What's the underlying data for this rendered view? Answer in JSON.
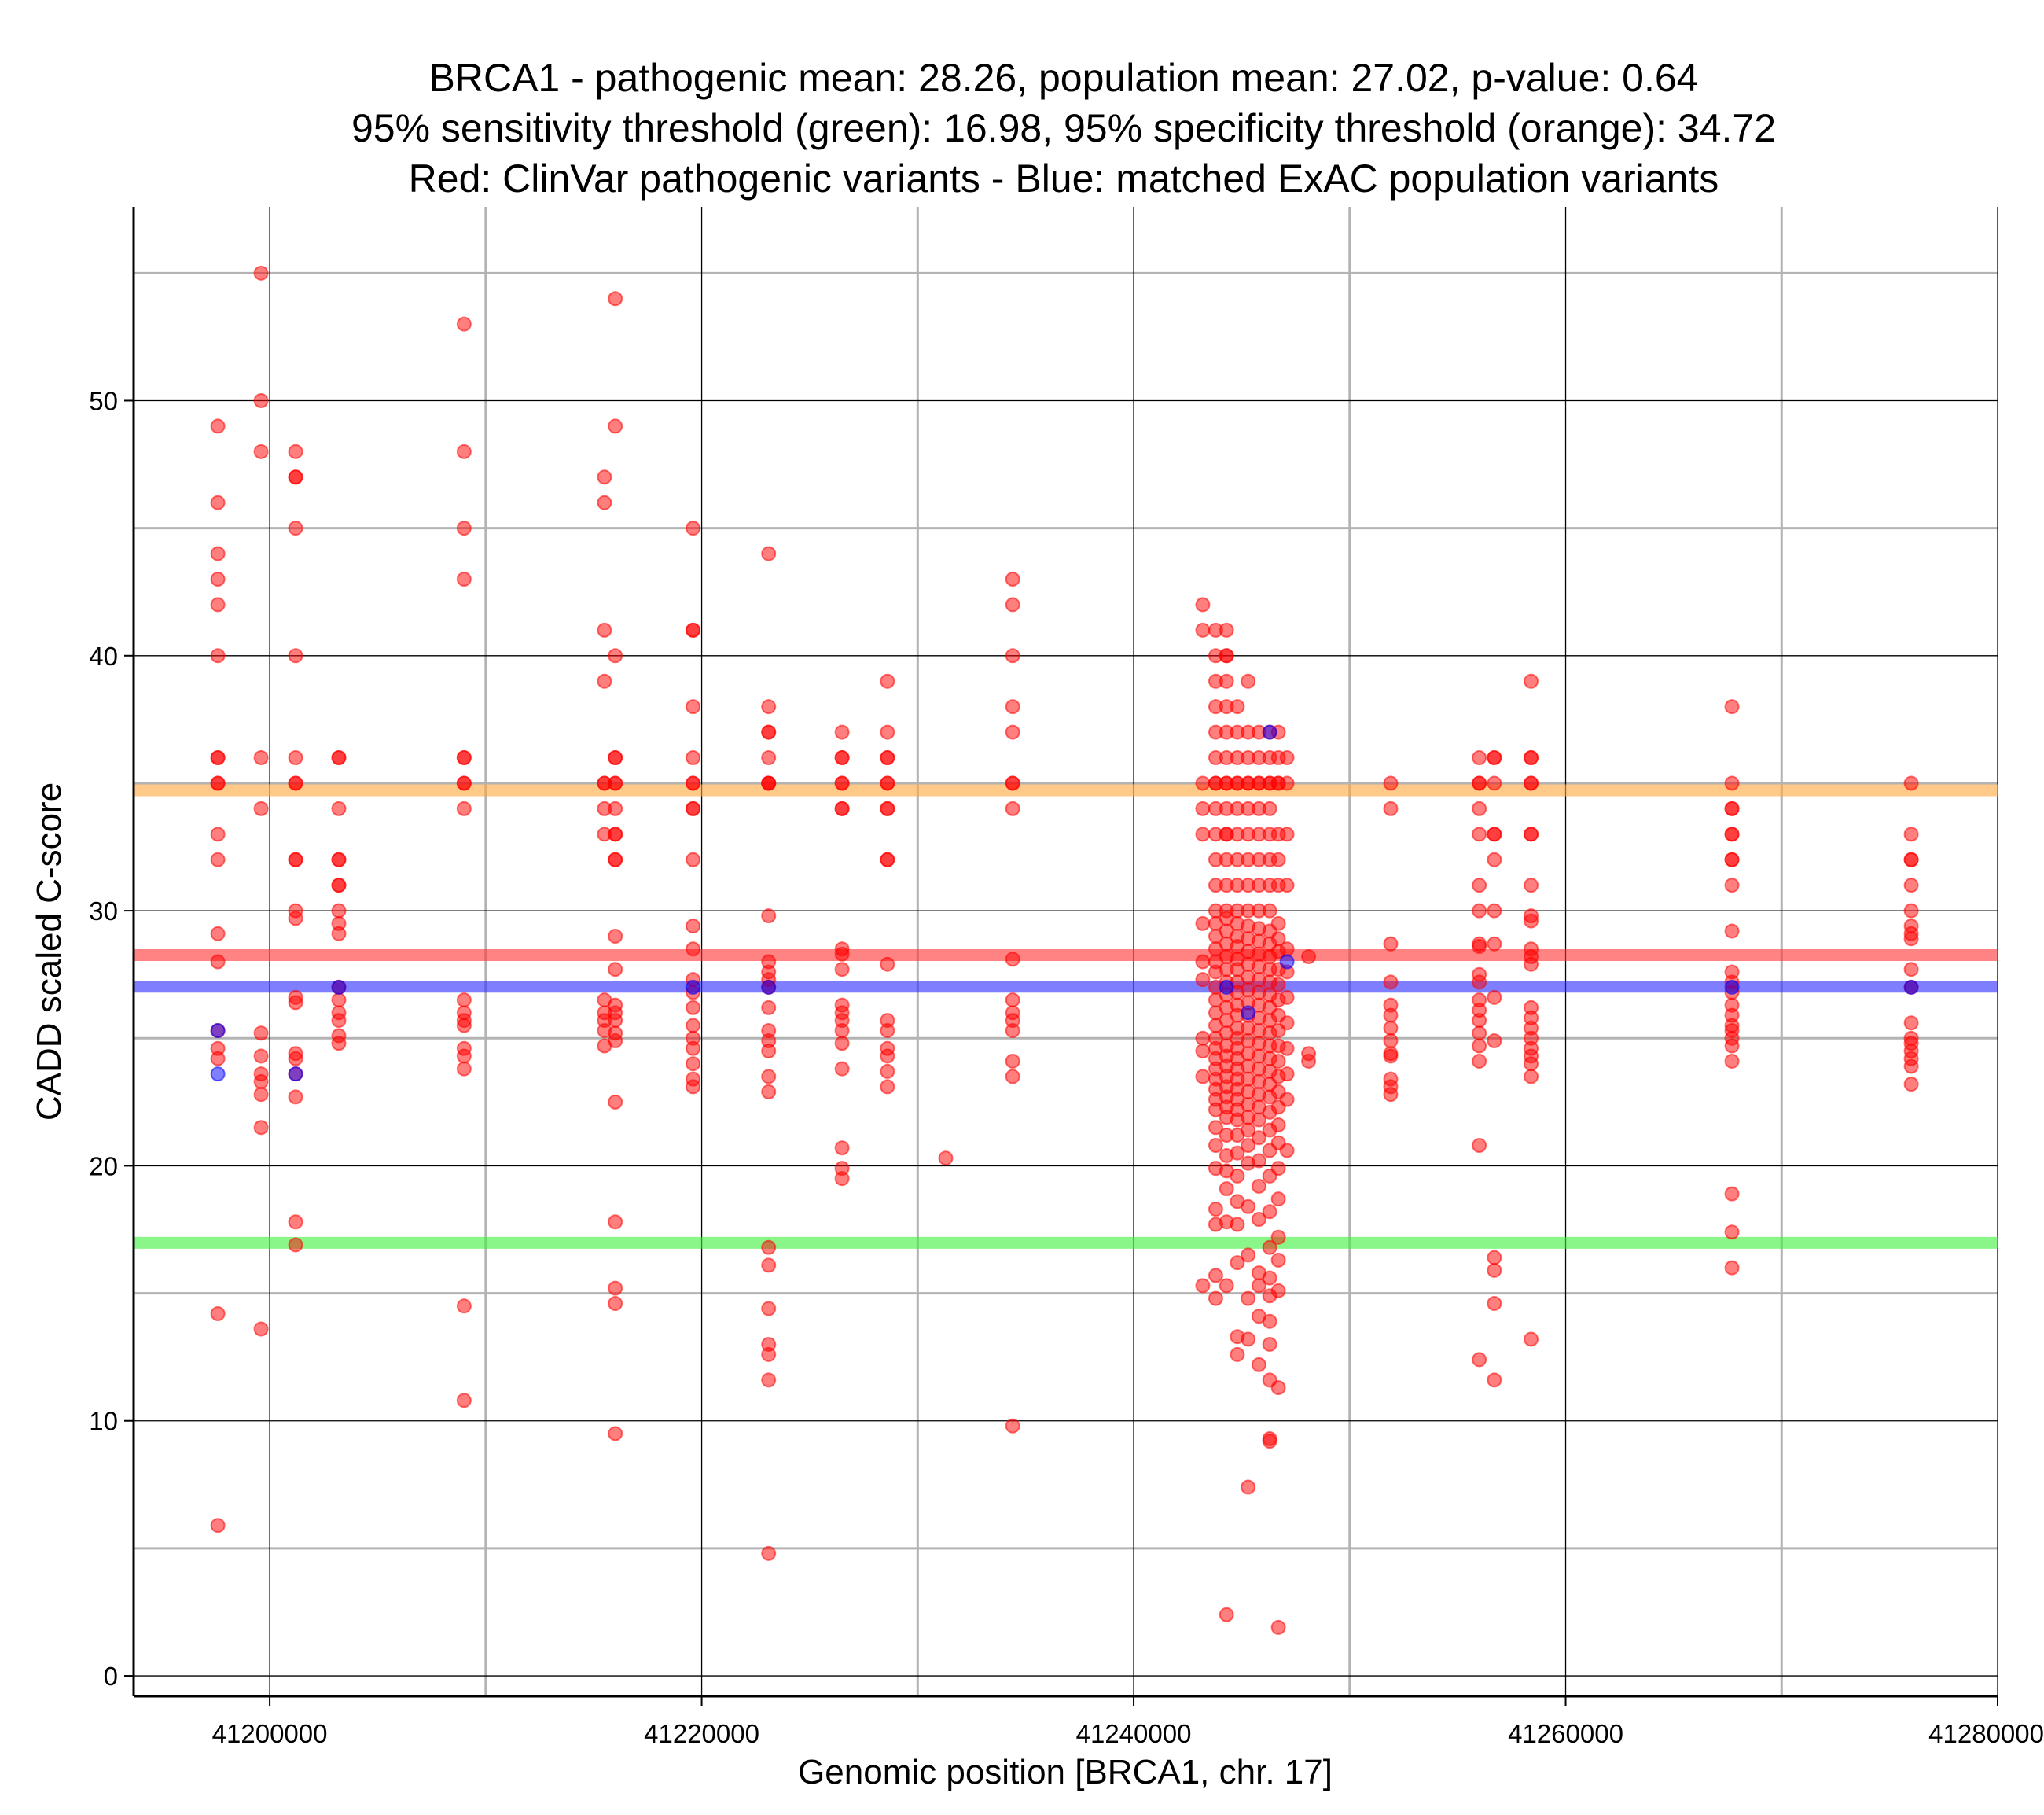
{
  "chart_data": {
    "type": "scatter",
    "title_lines": [
      "BRCA1 - pathogenic mean: 28.26, population mean: 27.02, p-value: 0.64",
      "95% sensitivity threshold (green): 16.98, 95% specificity threshold (orange): 34.72",
      "Red: ClinVar pathogenic variants - Blue: matched ExAC population variants"
    ],
    "xlabel": "Genomic position [BRCA1, chr. 17]",
    "ylabel": "CADD scaled C-score",
    "xlim": [
      41193700,
      41280000
    ],
    "ylim": [
      -0.8,
      57.6
    ],
    "x_ticks": [
      41200000,
      41220000,
      41240000,
      41260000,
      41280000
    ],
    "x_tick_labels": [
      "41200000",
      "41220000",
      "41240000",
      "41260000",
      "41280000"
    ],
    "y_ticks": [
      0,
      10,
      20,
      30,
      40,
      50
    ],
    "y_tick_labels": [
      "0",
      "10",
      "20",
      "30",
      "40",
      "50"
    ],
    "grid": true,
    "reference_lines": [
      {
        "name": "95% specificity threshold",
        "value": 34.72,
        "color": "#ffa53a"
      },
      {
        "name": "pathogenic mean",
        "value": 28.26,
        "color": "#ff3030"
      },
      {
        "name": "population mean",
        "value": 27.02,
        "color": "#2828ff"
      },
      {
        "name": "95% sensitivity threshold",
        "value": 16.98,
        "color": "#3cf03c"
      }
    ],
    "series": [
      {
        "name": "ClinVar pathogenic variants",
        "color": "#ff0000",
        "columns": [
          {
            "x": 41197600,
            "y": [
              49,
              46,
              44,
              43,
              42,
              40,
              36,
              36,
              35,
              35,
              33,
              32,
              29.1,
              28,
              25.3,
              24.6,
              24.2,
              14.2,
              5.9
            ]
          },
          {
            "x": 41199600,
            "y": [
              55,
              50,
              48,
              36,
              34,
              25.2,
              24.3,
              23.6,
              23.3,
              22.8,
              21.5,
              13.6
            ]
          },
          {
            "x": 41201200,
            "y": [
              48,
              47,
              47,
              45,
              40,
              36,
              35,
              35,
              32,
              32,
              30,
              29.7,
              26.6,
              26.4,
              24.4,
              24.2,
              23.6,
              22.7,
              17.8,
              16.9
            ]
          },
          {
            "x": 41203200,
            "y": [
              36,
              36,
              34,
              32,
              32,
              31,
              31,
              30,
              29.5,
              29.1,
              27,
              26.5,
              26,
              25.7,
              25.1,
              24.8
            ]
          },
          {
            "x": 41209000,
            "y": [
              53,
              48,
              45,
              43,
              36,
              36,
              35,
              35,
              34,
              26.5,
              26,
              25.7,
              25.5,
              24.6,
              24.3,
              23.8,
              14.5,
              10.8
            ]
          },
          {
            "x": 41215500,
            "y": [
              47,
              46,
              41,
              39,
              35,
              35,
              34,
              33,
              26.5,
              26,
              25.7,
              25.3,
              24.7
            ]
          },
          {
            "x": 41216000,
            "y": [
              54,
              49,
              40,
              36,
              36,
              35,
              35,
              34,
              33,
              33,
              32,
              32,
              29,
              27.7,
              26.3,
              26,
              25.7,
              25.2,
              24.9,
              22.5,
              17.8,
              15.2,
              14.6,
              9.5
            ]
          },
          {
            "x": 41219600,
            "y": [
              45,
              41,
              41,
              38,
              36,
              35,
              35,
              34,
              34,
              32,
              29.4,
              28.5,
              27.3,
              26.8,
              26.2,
              25.5,
              25,
              24.6,
              24,
              23.4,
              23.1
            ]
          },
          {
            "x": 41223100,
            "y": [
              44,
              38,
              37,
              37,
              36,
              35,
              35,
              35,
              29.8,
              28,
              27.6,
              27.3,
              27,
              26.2,
              25.3,
              24.9,
              24.5,
              23.5,
              22.9,
              16.8,
              16.1,
              14.4,
              13,
              12.6,
              11.6,
              4.8
            ]
          },
          {
            "x": 41226500,
            "y": [
              37,
              36,
              36,
              35,
              35,
              34,
              34,
              28.5,
              28.3,
              27.7,
              26.3,
              26,
              25.7,
              25.3,
              24.8,
              23.8,
              20.7,
              19.9,
              19.5
            ]
          },
          {
            "x": 41228600,
            "y": [
              39,
              37,
              36,
              36,
              35,
              35,
              34,
              34,
              32,
              32,
              27.9,
              25.7,
              25.3,
              24.6,
              24.3,
              23.7,
              23.1
            ]
          },
          {
            "x": 41231300,
            "y": [
              20.3
            ]
          },
          {
            "x": 41234400,
            "y": [
              43,
              42,
              40,
              38,
              37,
              35,
              35,
              34,
              28.1,
              26.5,
              26,
              25.7,
              25.3,
              24.1,
              23.5,
              9.8
            ]
          },
          {
            "x": 41243200,
            "y": [
              42,
              41,
              35,
              34,
              33,
              29.5,
              28,
              27.3,
              25,
              24.5,
              23.5,
              15.3
            ]
          },
          {
            "x": 41243800,
            "y": [
              41,
              40,
              39,
              38,
              37,
              36,
              35,
              35,
              34,
              33,
              32,
              31,
              30,
              29.5,
              29,
              28.5,
              28,
              27.6,
              27,
              26.5,
              26,
              25.5,
              25,
              24.6,
              24.2,
              23.8,
              23.4,
              23,
              22.6,
              22.2,
              21.5,
              20.8,
              19.9,
              18.3,
              17.7,
              15.7,
              14.8
            ]
          },
          {
            "x": 41244300,
            "y": [
              41,
              40,
              40,
              39,
              38,
              37,
              36,
              35,
              35,
              34,
              33,
              33,
              32,
              31,
              30,
              29.7,
              29.2,
              28.7,
              28.2,
              27.7,
              27.2,
              26.7,
              26.2,
              25.7,
              25.2,
              24.7,
              24.3,
              23.9,
              23.5,
              23.1,
              22.7,
              22.3,
              21.9,
              21.2,
              20.4,
              19.8,
              19.1,
              17.8,
              15.3,
              2.4
            ]
          },
          {
            "x": 41244800,
            "y": [
              38,
              37,
              36,
              35,
              35,
              34,
              33,
              32,
              31,
              30,
              29.5,
              29,
              28.6,
              28.1,
              27.7,
              27.2,
              26.8,
              26.3,
              25.9,
              25.4,
              25,
              24.6,
              24.2,
              23.8,
              23.4,
              23,
              22.6,
              22.2,
              21.8,
              21.2,
              20.5,
              19.6,
              18.6,
              17.7,
              16.2,
              13.3,
              12.6
            ]
          },
          {
            "x": 41245300,
            "y": [
              39,
              37,
              36,
              35,
              35,
              34,
              33,
              32,
              31,
              30,
              29.4,
              28.9,
              28.4,
              27.9,
              27.4,
              26.9,
              26.4,
              25.9,
              25.4,
              24.9,
              24.4,
              23.9,
              23.4,
              22.9,
              22.4,
              21.9,
              21.4,
              20.8,
              20.1,
              18.4,
              16.5,
              14.8,
              13.2,
              7.4
            ]
          },
          {
            "x": 41245800,
            "y": [
              37,
              36,
              35,
              35,
              34,
              33,
              32,
              31,
              30,
              29.3,
              28.8,
              28.3,
              27.8,
              27.3,
              26.8,
              26.3,
              25.8,
              25.3,
              24.8,
              24.3,
              23.8,
              23.3,
              22.8,
              22.3,
              21.8,
              21.1,
              20.2,
              19.2,
              17.9,
              15.8,
              15.3,
              14.1,
              12.2
            ]
          },
          {
            "x": 41246300,
            "y": [
              37,
              36,
              35,
              35,
              34,
              33,
              32,
              31,
              30,
              29.2,
              28.7,
              28.2,
              27.7,
              27.2,
              26.7,
              26.2,
              25.7,
              25.2,
              24.7,
              24.2,
              23.7,
              23.2,
              22.7,
              22.1,
              21.4,
              20.6,
              19.6,
              18.2,
              16.8,
              15.6,
              14.9,
              13.9,
              13,
              11.6,
              9.3,
              9.2
            ]
          },
          {
            "x": 41246700,
            "y": [
              37,
              36,
              35,
              35,
              33,
              32,
              31,
              29.5,
              28.9,
              28.4,
              27.7,
              27.1,
              26.5,
              25.9,
              25.3,
              24.7,
              24.1,
              23.5,
              22.9,
              22.3,
              21.6,
              20.9,
              19.9,
              18.7,
              17.2,
              16.3,
              15.1,
              11.3,
              1.9
            ]
          },
          {
            "x": 41247100,
            "y": [
              36,
              35,
              33,
              31,
              28.5,
              27.6,
              26.6,
              25.6,
              24.6,
              23.6,
              22.6,
              20.6
            ]
          },
          {
            "x": 41248100,
            "y": [
              28.2,
              24.4,
              24.1
            ]
          },
          {
            "x": 41251900,
            "y": [
              35,
              34,
              28.7,
              27.2,
              26.3,
              25.9,
              25.4,
              24.9,
              24.4,
              24.3,
              23.4,
              23.1,
              22.8
            ]
          },
          {
            "x": 41256000,
            "y": [
              36,
              35,
              35,
              34,
              33,
              31,
              30,
              28.7,
              28.6,
              27.5,
              27.2,
              26.5,
              26.1,
              25.7,
              25.2,
              24.7,
              24.1,
              20.8,
              12.4
            ]
          },
          {
            "x": 41256700,
            "y": [
              36,
              36,
              35,
              33,
              33,
              32,
              30,
              28.7,
              26.6,
              24.9,
              16.4,
              15.9,
              14.6,
              11.6
            ]
          },
          {
            "x": 41258400,
            "y": [
              39,
              36,
              36,
              35,
              35,
              33,
              33,
              31,
              29.8,
              29.6,
              28.5,
              28.2,
              27.9,
              26.2,
              25.8,
              25.4,
              25,
              24.6,
              24.3,
              24,
              23.5,
              13.2
            ]
          },
          {
            "x": 41267700,
            "y": [
              38,
              35,
              34,
              34,
              33,
              33,
              32,
              32,
              31,
              29.2,
              27.6,
              27.2,
              26.8,
              26.3,
              25.9,
              25.5,
              25.3,
              25,
              24.7,
              24.1,
              18.9,
              17.4,
              16
            ]
          },
          {
            "x": 41276000,
            "y": [
              35,
              33,
              32,
              32,
              31,
              30,
              29.4,
              29.1,
              28.9,
              27.7,
              27,
              25.6,
              25,
              24.8,
              24.5,
              24.2,
              23.9,
              23.2
            ]
          }
        ]
      },
      {
        "name": "matched ExAC population variants",
        "color": "#0000ff",
        "columns": [
          {
            "x": 41197600,
            "y": [
              25.3,
              23.6
            ]
          },
          {
            "x": 41201200,
            "y": [
              23.6
            ]
          },
          {
            "x": 41203200,
            "y": [
              27
            ]
          },
          {
            "x": 41219600,
            "y": [
              27
            ]
          },
          {
            "x": 41223100,
            "y": [
              27
            ]
          },
          {
            "x": 41244300,
            "y": [
              27
            ]
          },
          {
            "x": 41245300,
            "y": [
              26
            ]
          },
          {
            "x": 41246300,
            "y": [
              37
            ]
          },
          {
            "x": 41247100,
            "y": [
              28
            ]
          },
          {
            "x": 41267700,
            "y": [
              27
            ]
          },
          {
            "x": 41276000,
            "y": [
              27
            ]
          }
        ]
      }
    ]
  }
}
